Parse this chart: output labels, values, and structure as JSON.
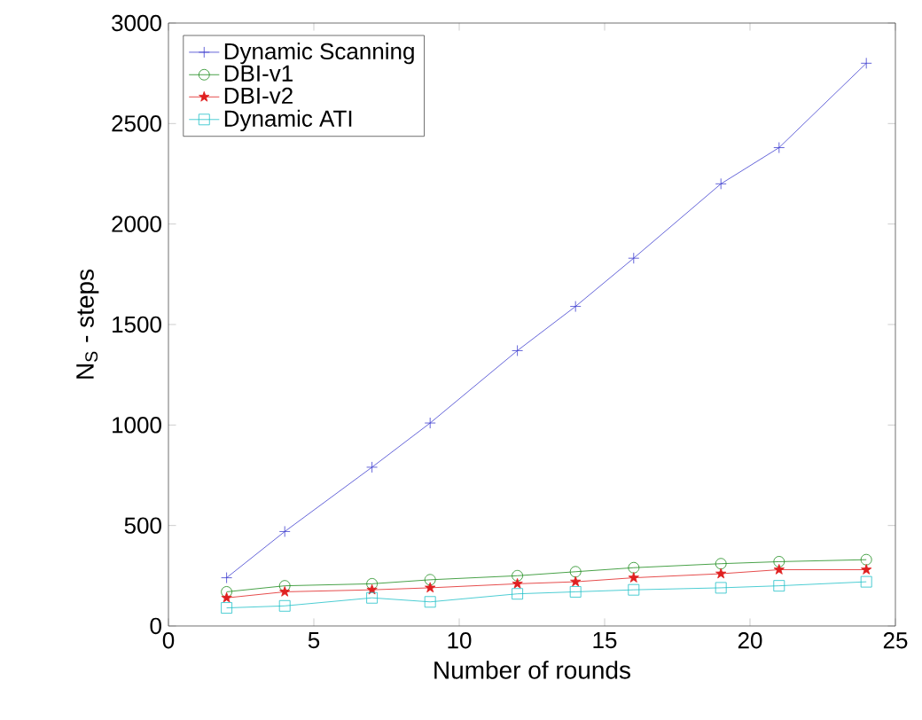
{
  "chart_data": {
    "type": "line",
    "xlabel": "Number of rounds",
    "ylabel": "N$_{S}$ - steps",
    "x": [
      2,
      4,
      7,
      9,
      12,
      14,
      16,
      19,
      21,
      24
    ],
    "series": [
      {
        "name": "Dynamic Scanning",
        "color": "#3f3fcf",
        "marker": "cross",
        "values": [
          240,
          470,
          790,
          1010,
          1370,
          1590,
          1830,
          2200,
          2380,
          2800
        ]
      },
      {
        "name": "DBI-v1",
        "color": "#1a8a1a",
        "marker": "circle",
        "values": [
          170,
          200,
          210,
          230,
          250,
          270,
          290,
          310,
          320,
          330
        ]
      },
      {
        "name": "DBI-v2",
        "color": "#e02020",
        "marker": "star",
        "values": [
          140,
          170,
          180,
          190,
          210,
          220,
          240,
          260,
          280,
          280
        ]
      },
      {
        "name": "Dynamic ATI",
        "color": "#20c0c8",
        "marker": "square",
        "values": [
          90,
          100,
          140,
          120,
          160,
          170,
          180,
          190,
          200,
          220
        ]
      }
    ],
    "xlim": [
      0,
      25
    ],
    "xticks": [
      0,
      5,
      10,
      15,
      20,
      25
    ],
    "ylim": [
      0,
      3000
    ],
    "yticks": [
      0,
      500,
      1000,
      1500,
      2000,
      2500,
      3000
    ],
    "legend": "top left",
    "grid": false
  }
}
